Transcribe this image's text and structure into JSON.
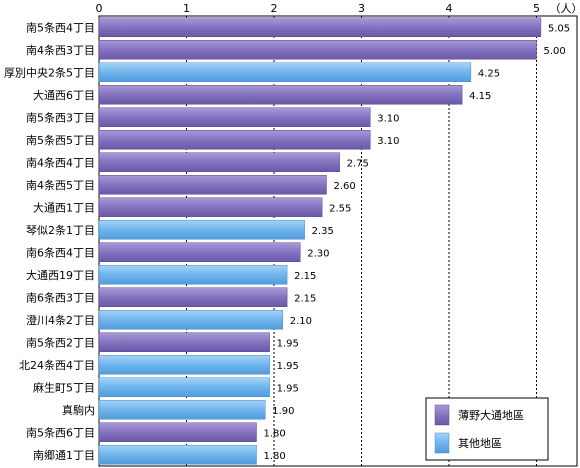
{
  "chart_data": {
    "type": "bar",
    "orientation": "horizontal",
    "unit_label": "（人）",
    "xlim": [
      0,
      5.35
    ],
    "ticks": [
      0,
      1,
      2,
      3,
      4,
      5
    ],
    "grid": true,
    "legend_position": "bottom-right",
    "series": [
      {
        "name": "薄野大通地區",
        "color": "#8472c0"
      },
      {
        "name": "其他地區",
        "color": "#6fb4ec"
      }
    ],
    "bars": [
      {
        "category": "南5条西4丁目",
        "value": 5.05,
        "label": "5.05",
        "series": 0
      },
      {
        "category": "南4条西3丁目",
        "value": 5.0,
        "label": "5.00",
        "series": 0
      },
      {
        "category": "厚別中央2条5丁目",
        "value": 4.25,
        "label": "4.25",
        "series": 1
      },
      {
        "category": "大通西6丁目",
        "value": 4.15,
        "label": "4.15",
        "series": 0
      },
      {
        "category": "南5条西3丁目",
        "value": 3.1,
        "label": "3.10",
        "series": 0
      },
      {
        "category": "南5条西5丁目",
        "value": 3.1,
        "label": "3.10",
        "series": 0
      },
      {
        "category": "南4条西4丁目",
        "value": 2.75,
        "label": "2.75",
        "series": 0
      },
      {
        "category": "南4条西5丁目",
        "value": 2.6,
        "label": "2.60",
        "series": 0
      },
      {
        "category": "大通西1丁目",
        "value": 2.55,
        "label": "2.55",
        "series": 0
      },
      {
        "category": "琴似2条1丁目",
        "value": 2.35,
        "label": "2.35",
        "series": 1
      },
      {
        "category": "南6条西4丁目",
        "value": 2.3,
        "label": "2.30",
        "series": 0
      },
      {
        "category": "大通西19丁目",
        "value": 2.15,
        "label": "2.15",
        "series": 1
      },
      {
        "category": "南6条西3丁目",
        "value": 2.15,
        "label": "2.15",
        "series": 0
      },
      {
        "category": "澄川4条2丁目",
        "value": 2.1,
        "label": "2.10",
        "series": 1
      },
      {
        "category": "南5条西2丁目",
        "value": 1.95,
        "label": "1.95",
        "series": 0
      },
      {
        "category": "北24条西4丁目",
        "value": 1.95,
        "label": "1.95",
        "series": 1
      },
      {
        "category": "麻生町5丁目",
        "value": 1.95,
        "label": "1.95",
        "series": 1
      },
      {
        "category": "真駒内",
        "value": 1.9,
        "label": "1.90",
        "series": 1
      },
      {
        "category": "南5条西6丁目",
        "value": 1.8,
        "label": "1.80",
        "series": 0
      },
      {
        "category": "南郷通1丁目",
        "value": 1.8,
        "label": "1.80",
        "series": 1
      }
    ]
  }
}
